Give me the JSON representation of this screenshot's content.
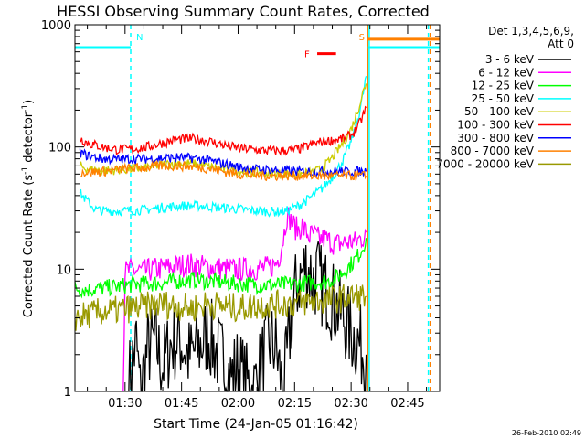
{
  "chart_data": {
    "type": "line",
    "title": "HESSI Observing Summary Count Rates, Corrected",
    "xlabel": "Start Time (24-Jan-05 01:16:42)",
    "ylabel_main": "Corrected Count Rate (s",
    "ylabel_sup1": "-1",
    "ylabel_mid": " detector",
    "ylabel_sup2": "-1",
    "ylabel_end": ")",
    "footer": "26-Feb-2010 02:49",
    "xlim": [
      76.7,
      173.5
    ],
    "ylim": [
      1,
      1000
    ],
    "y_scale": "log",
    "x_ticks": [
      {
        "value": 90,
        "label": "01:30"
      },
      {
        "value": 105,
        "label": "01:45"
      },
      {
        "value": 120,
        "label": "02:00"
      },
      {
        "value": 135,
        "label": "02:15"
      },
      {
        "value": 150,
        "label": "02:30"
      },
      {
        "value": 165,
        "label": "02:45"
      }
    ],
    "y_ticks": [
      {
        "value": 1,
        "label": "1"
      },
      {
        "value": 10,
        "label": "10"
      },
      {
        "value": 100,
        "label": "100"
      },
      {
        "value": 1000,
        "label": "1000"
      }
    ],
    "legend": {
      "header1": "Det 1,3,4,5,6,9,",
      "header2": "Att 0",
      "placement": "right"
    },
    "series": [
      {
        "name": "3 - 6 keV",
        "color": "#000000",
        "x": [
          76.7,
          90,
          91,
          92,
          93,
          94,
          96,
          98,
          100,
          102,
          104,
          105,
          107,
          109,
          111,
          112,
          114,
          116,
          118,
          120,
          122,
          124,
          126,
          128,
          130,
          131,
          132,
          133,
          134,
          135,
          136,
          138,
          139,
          140,
          141,
          142,
          143,
          144,
          145,
          146,
          147,
          148,
          149,
          150,
          151,
          152,
          153,
          154
        ],
        "y": [
          null,
          null,
          1.2,
          1.8,
          2.5,
          1.0,
          2.2,
          2.6,
          1.6,
          2.4,
          2.7,
          2.5,
          1.9,
          2.2,
          2.6,
          3.0,
          2.2,
          1.8,
          1.3,
          1.6,
          1.2,
          1.0,
          1.6,
          2.6,
          2.3,
          1.5,
          1.0,
          1.8,
          3.5,
          6.0,
          8.0,
          10.5,
          9.5,
          8.0,
          9.0,
          7.5,
          7.0,
          6.5,
          5.5,
          5.0,
          4.5,
          4.0,
          3.5,
          3.0,
          2.8,
          2.5,
          2.2,
          2.0
        ]
      },
      {
        "name": "6 - 12 keV",
        "color": "#ff00ff",
        "x": [
          76.7,
          89.5,
          90,
          92,
          95,
          98,
          101,
          104,
          107,
          110,
          113,
          116,
          119,
          122,
          125,
          128,
          130,
          131,
          132,
          133,
          134,
          135,
          136,
          137,
          138,
          139,
          140,
          141,
          142,
          143,
          144,
          145,
          146,
          147,
          148,
          149,
          150,
          151,
          152,
          153,
          154
        ],
        "y": [
          null,
          1.0,
          9.5,
          9.8,
          9.6,
          10.0,
          10.2,
          10.6,
          10.9,
          10.6,
          10.3,
          10.1,
          9.9,
          10.0,
          10.1,
          10.3,
          11.0,
          13.0,
          18.0,
          28.0,
          25.0,
          22.0,
          21.0,
          22.5,
          20.0,
          18.5,
          19.5,
          18.0,
          17.5,
          18.0,
          17.0,
          16.5,
          16.0,
          16.2,
          16.5,
          16.5,
          17.0,
          16.5,
          17.5,
          18.0,
          20.0
        ]
      },
      {
        "name": "12 - 25 keV",
        "color": "#00ff00",
        "x": [
          76.7,
          80,
          84,
          88,
          92,
          96,
          100,
          104,
          108,
          112,
          116,
          120,
          124,
          128,
          132,
          136,
          140,
          144,
          146,
          148,
          150,
          152,
          153,
          154
        ],
        "y": [
          7.0,
          6.8,
          7.0,
          7.2,
          7.5,
          7.6,
          7.7,
          8.0,
          8.2,
          8.0,
          7.8,
          7.6,
          7.5,
          7.4,
          7.5,
          7.6,
          7.8,
          8.0,
          8.5,
          9.5,
          11.0,
          13.0,
          15.0,
          18.0
        ]
      },
      {
        "name": "25 - 50 keV",
        "color": "#00ffff",
        "x": [
          76.7,
          78,
          80,
          82,
          84,
          86,
          90,
          95,
          100,
          105,
          110,
          115,
          120,
          125,
          130,
          133,
          136,
          139,
          142,
          144,
          146,
          148,
          150,
          151,
          152,
          153,
          154
        ],
        "y": [
          null,
          42,
          36,
          31,
          30,
          30,
          30,
          30.5,
          32,
          33,
          33,
          32,
          31,
          30,
          29.5,
          30,
          33,
          38,
          45,
          52,
          62,
          80,
          110,
          140,
          180,
          250,
          380
        ]
      },
      {
        "name": "50 - 100 keV",
        "color": "#cccc00",
        "x": [
          78,
          80,
          84,
          88,
          92,
          96,
          100,
          104,
          108,
          112,
          116,
          120,
          124,
          128,
          132,
          136,
          140,
          142,
          144,
          146,
          148,
          150,
          151,
          152,
          153,
          154
        ],
        "y": [
          70,
          66,
          64,
          65,
          66,
          68,
          72,
          74,
          73,
          69,
          66,
          64,
          62,
          61,
          60,
          60,
          62,
          66,
          75,
          90,
          110,
          140,
          170,
          210,
          270,
          330
        ]
      },
      {
        "name": "100 - 300 keV",
        "color": "#ff0000",
        "x": [
          78,
          80,
          84,
          88,
          92,
          96,
          100,
          104,
          108,
          112,
          116,
          120,
          124,
          128,
          132,
          136,
          138,
          140,
          142,
          144,
          146,
          148,
          150,
          151,
          152,
          153,
          154
        ],
        "y": [
          118,
          108,
          100,
          95,
          96,
          100,
          108,
          115,
          117,
          112,
          104,
          98,
          95,
          93,
          93,
          96,
          100,
          106,
          110,
          112,
          114,
          118,
          125,
          135,
          150,
          175,
          210
        ]
      },
      {
        "name": "300 - 800 keV",
        "color": "#0000ff",
        "x": [
          78,
          80,
          84,
          88,
          92,
          96,
          100,
          104,
          108,
          112,
          116,
          120,
          124,
          128,
          132,
          136,
          140,
          144,
          148,
          152,
          154
        ],
        "y": [
          90,
          85,
          80,
          79,
          80,
          80,
          81,
          82,
          81,
          78,
          73,
          69,
          66,
          65,
          64,
          63,
          63,
          63,
          63,
          63,
          63
        ]
      },
      {
        "name": "800 - 7000 keV",
        "color": "#ff8000",
        "x": [
          78,
          80,
          84,
          88,
          92,
          96,
          100,
          104,
          108,
          112,
          116,
          120,
          124,
          128,
          132,
          136,
          140,
          144,
          148,
          152,
          154
        ],
        "y": [
          62,
          62,
          63,
          65,
          67,
          68,
          70,
          70,
          69,
          67,
          63,
          60,
          59,
          58,
          58,
          58,
          58,
          58,
          58,
          58,
          58
        ]
      },
      {
        "name": "7000 - 20000 keV",
        "color": "#999900",
        "x": [
          76.7,
          80,
          84,
          88,
          92,
          96,
          100,
          104,
          108,
          112,
          116,
          120,
          124,
          128,
          132,
          136,
          140,
          144,
          148,
          152,
          154
        ],
        "y": [
          4.0,
          4.2,
          4.5,
          4.6,
          4.8,
          5.0,
          5.2,
          5.0,
          4.8,
          5.2,
          5.0,
          4.8,
          5.0,
          5.1,
          5.2,
          5.3,
          5.5,
          5.6,
          5.8,
          6.0,
          6.0
        ]
      }
    ],
    "state_bars": [
      {
        "label": "N",
        "color": "#00ffff",
        "x_start": 76.7,
        "x_end": 91.5,
        "y": 650,
        "marker_x": 91.5,
        "label_color": "#00ffff"
      },
      {
        "label": "S",
        "color": "#ff8000",
        "x_start": 154.5,
        "x_end": 173.5,
        "y": 760,
        "marker_x": 154.5,
        "label_color": "#ff8000"
      },
      {
        "label": "",
        "color": "#00ffff",
        "x_start": 154.5,
        "x_end": 173.5,
        "y": 650,
        "marker_x": 154.5,
        "label_color": "#00ffff"
      }
    ],
    "flare_bar": {
      "label": "F",
      "color": "#ff0000",
      "x_start": 141,
      "x_end": 146,
      "y": 580
    },
    "vertical_lines": [
      {
        "x": 91.5,
        "color": "#00ffff",
        "dashed": true
      },
      {
        "x": 154.8,
        "color": "#00ffff",
        "dashed": false
      },
      {
        "x": 154.4,
        "color": "#ff8000",
        "dashed": false
      },
      {
        "x": 170.5,
        "color": "#00ffff",
        "dashed": true
      },
      {
        "x": 171.0,
        "color": "#ff8000",
        "dashed": true
      }
    ]
  }
}
